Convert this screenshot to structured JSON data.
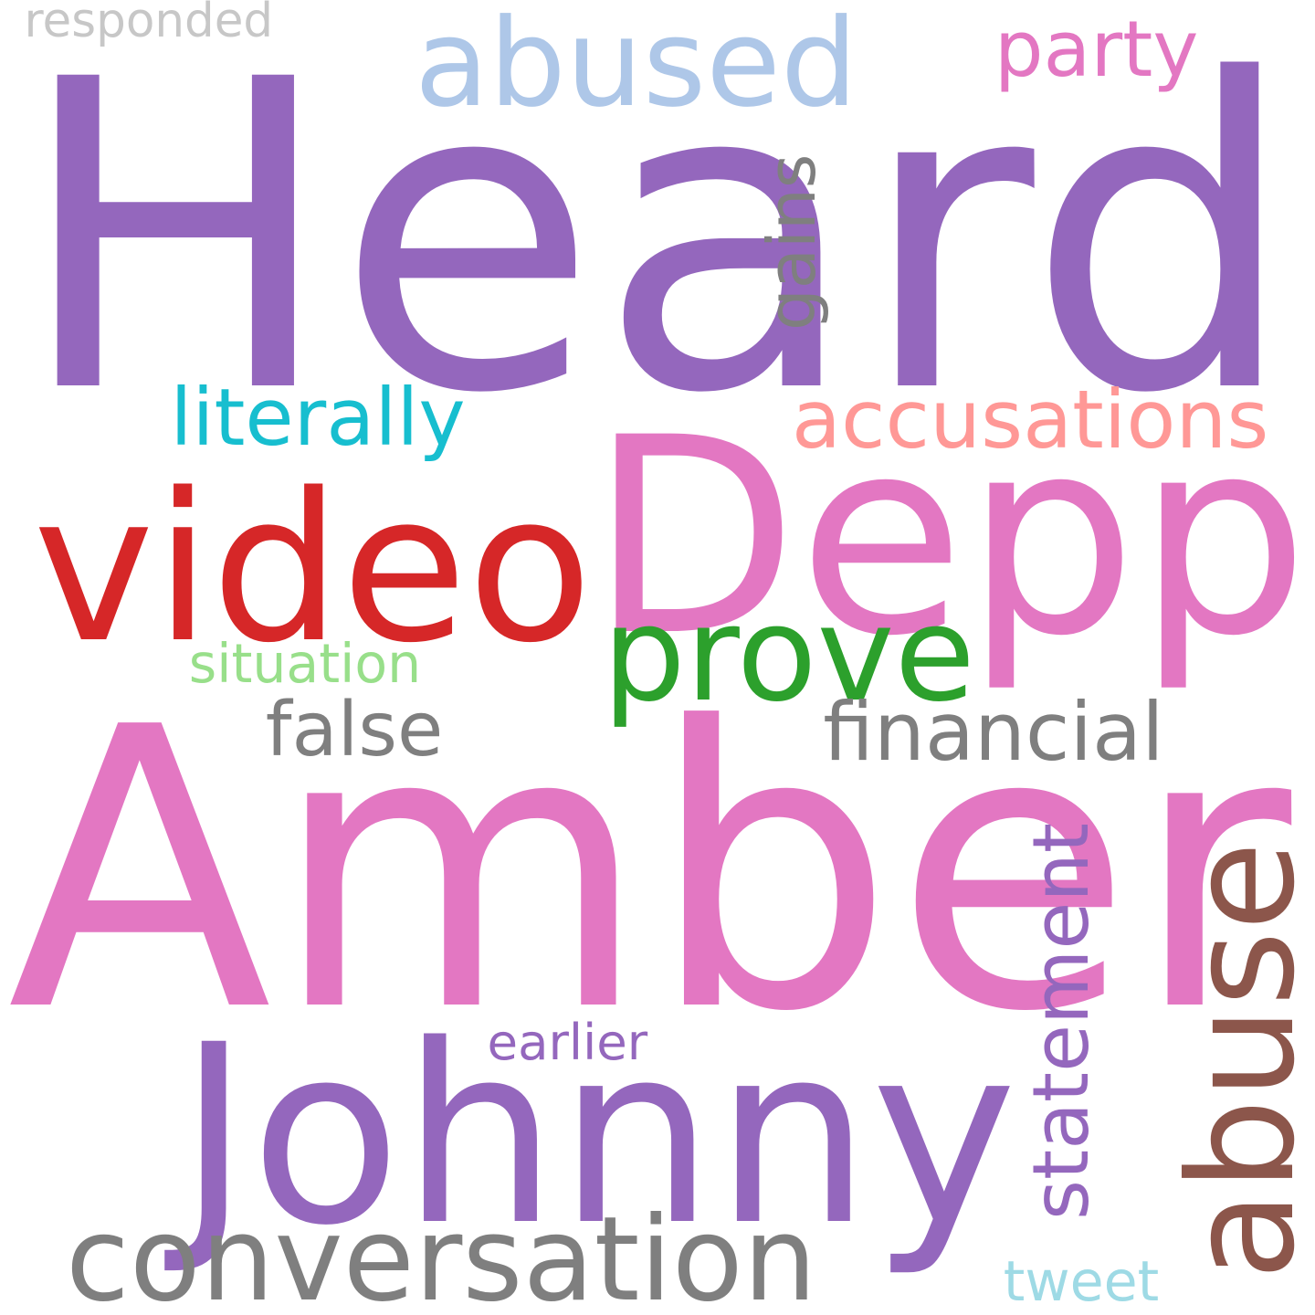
{
  "words": {
    "heard": {
      "text": "Heard",
      "color": "#9467bd"
    },
    "amber": {
      "text": "Amber",
      "color": "#e377c2"
    },
    "depp": {
      "text": "Depp",
      "color": "#e377c2"
    },
    "johnny": {
      "text": "Johnny",
      "color": "#9467bd"
    },
    "video": {
      "text": "video",
      "color": "#d62728"
    },
    "abuse": {
      "text": "abuse",
      "color": "#8c564b"
    },
    "abused": {
      "text": "abused",
      "color": "#aec7e8"
    },
    "conversation": {
      "text": "conversation",
      "color": "#7f7f7f"
    },
    "accusations": {
      "text": "accusations",
      "color": "#ff9896"
    },
    "prove": {
      "text": "prove",
      "color": "#2ca02c"
    },
    "literally": {
      "text": "literally",
      "color": "#17becf"
    },
    "financial": {
      "text": "financial",
      "color": "#7f7f7f"
    },
    "false": {
      "text": "false",
      "color": "#7f7f7f"
    },
    "statement": {
      "text": "statement",
      "color": "#9467bd"
    },
    "party": {
      "text": "party",
      "color": "#e377c2"
    },
    "gains": {
      "text": "gains",
      "color": "#7f7f7f"
    },
    "situation": {
      "text": "situation",
      "color": "#98df8a"
    },
    "earlier": {
      "text": "earlier",
      "color": "#9467bd"
    },
    "responded": {
      "text": "responded",
      "color": "#c7c7c7"
    },
    "tweet": {
      "text": "tweet",
      "color": "#9edae5"
    }
  }
}
